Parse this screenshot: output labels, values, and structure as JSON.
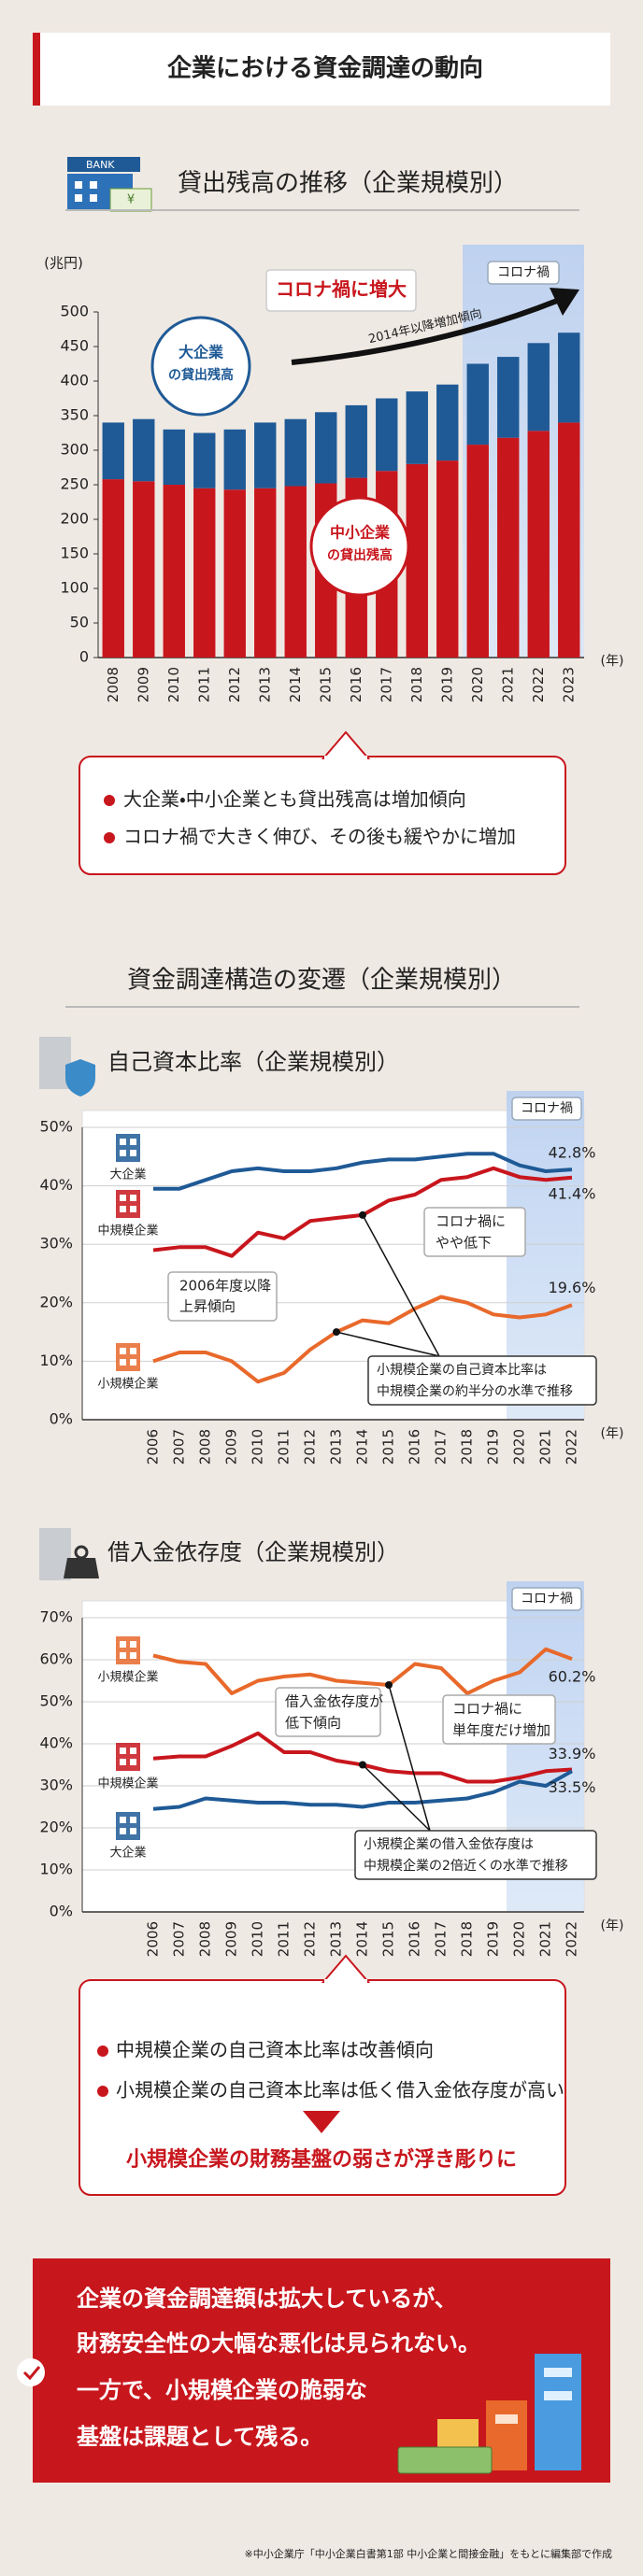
{
  "title": "企業における資金調達の動向",
  "bank_icon": {
    "sign": "BANK",
    "currency": "¥"
  },
  "summary1": [
    "大企業・中小企業とも貸出残高は増加傾向",
    "コロナ禍で大きく伸び、その後も緩やかに増加"
  ],
  "section2_heading": "資金調達構造の変遷（企業規模別）",
  "summary2": {
    "points": [
      "中規模企業の自己資本比率は改善傾向",
      "小規模企業の自己資本比率は低く借入金依存度が高い"
    ],
    "conclusion": "小規模企業の財務基盤の弱さが浮き彫りに"
  },
  "conclusion": [
    "企業の資金調達額は拡大しているが、",
    "財務安全性の大幅な悪化は見られない。",
    "一方で、小規模企業の脆弱な",
    "基盤は課題として残る。"
  ],
  "source": "※中小企業庁「中小企業白書第1部 中小企業と間接金融」をもとに編集部で作成",
  "chart_data": [
    {
      "type": "bar",
      "stacked": true,
      "title": "貸出残高の推移（企業規模別）",
      "categories": [
        "2008",
        "2009",
        "2010",
        "2011",
        "2012",
        "2013",
        "2014",
        "2015",
        "2016",
        "2017",
        "2018",
        "2019",
        "2020",
        "2021",
        "2022",
        "2023"
      ],
      "series": [
        {
          "name": "中小企業",
          "color": "#c8161d",
          "values": [
            258,
            255,
            250,
            245,
            243,
            245,
            248,
            252,
            260,
            270,
            280,
            285,
            308,
            318,
            328,
            340
          ]
        },
        {
          "name": "大企業",
          "color": "#1f5a96",
          "values": [
            82,
            90,
            80,
            80,
            87,
            95,
            97,
            103,
            105,
            105,
            105,
            110,
            117,
            117,
            127,
            130
          ]
        }
      ],
      "ylim": [
        0,
        500
      ],
      "yticks": [
        0,
        50,
        100,
        150,
        200,
        250,
        300,
        350,
        400,
        450,
        500
      ],
      "grid": false,
      "annotations": [
        "(兆円)",
        "コロナ禍に増大",
        "2014年以降増加傾向",
        "コロナ禍",
        "の貸出残高",
        "の貸出残高",
        "(年)"
      ]
    },
    {
      "type": "line",
      "title": "自己資本比率（企業規模別）",
      "categories": [
        "2006",
        "2007",
        "2008",
        "2009",
        "2010",
        "2011",
        "2012",
        "2013",
        "2014",
        "2015",
        "2016",
        "2017",
        "2018",
        "2019",
        "2020",
        "2021",
        "2022"
      ],
      "series": [
        {
          "name": "大企業",
          "color": "#1f5a96",
          "values": [
            39.5,
            39.5,
            41,
            42.5,
            43,
            42.5,
            42.5,
            43,
            44,
            44.5,
            44.5,
            45,
            45.5,
            45.5,
            43.5,
            42.5,
            42.8
          ],
          "value_labels": [
            null,
            null,
            null,
            null,
            null,
            null,
            null,
            null,
            null,
            null,
            null,
            null,
            null,
            null,
            null,
            null,
            "42.8%"
          ]
        },
        {
          "name": "中規模企業",
          "color": "#c8161d",
          "values": [
            29,
            29.5,
            29.5,
            28,
            32,
            31,
            34,
            34.5,
            35,
            37.5,
            38.5,
            41,
            41.5,
            43,
            41.5,
            41,
            41.4
          ],
          "value_labels": [
            null,
            null,
            null,
            null,
            null,
            null,
            null,
            null,
            null,
            null,
            null,
            null,
            null,
            null,
            null,
            null,
            "41.4%"
          ]
        },
        {
          "name": "小規模企業",
          "color": "#e8692b",
          "values": [
            10,
            11.5,
            11.5,
            10,
            6.5,
            8,
            12,
            15,
            17,
            16.5,
            19,
            21,
            20,
            18,
            17.5,
            18,
            19.6
          ],
          "value_labels": [
            null,
            null,
            null,
            null,
            null,
            null,
            null,
            null,
            null,
            null,
            null,
            null,
            null,
            null,
            null,
            null,
            "19.6%"
          ]
        }
      ],
      "ylim": [
        0,
        50
      ],
      "yticks": [
        {
          "value": 0,
          "label": "0%"
        },
        {
          "value": 10,
          "label": "10%"
        },
        {
          "value": 20,
          "label": "20%"
        },
        {
          "value": 30,
          "label": "30%"
        },
        {
          "value": 40,
          "label": "40%"
        },
        {
          "value": 50,
          "label": "50%"
        }
      ],
      "grid": true,
      "annotations": [
        "コロナ禍",
        [
          "2006年度以降",
          "上昇傾向"
        ],
        [
          "コロナ禍に",
          "やや低下"
        ],
        [
          "小規模企業の自己資本比率は",
          "中規模企業の約半分の水準で推移"
        ],
        "(年)"
      ]
    },
    {
      "type": "line",
      "title": "借入金依存度（企業規模別）",
      "categories": [
        "2006",
        "2007",
        "2008",
        "2009",
        "2010",
        "2011",
        "2012",
        "2013",
        "2014",
        "2015",
        "2016",
        "2017",
        "2018",
        "2019",
        "2020",
        "2021",
        "2022"
      ],
      "series": [
        {
          "name": "小規模企業",
          "color": "#e8692b",
          "values": [
            61,
            59.5,
            59,
            52,
            55,
            56,
            56.5,
            55,
            54.5,
            54,
            59,
            58,
            52,
            55,
            57,
            62.5,
            60.2
          ],
          "value_labels": [
            null,
            null,
            null,
            null,
            null,
            null,
            null,
            null,
            null,
            null,
            null,
            null,
            null,
            null,
            null,
            null,
            "60.2%"
          ]
        },
        {
          "name": "中規模企業",
          "color": "#c8161d",
          "values": [
            36.5,
            37,
            37,
            39.5,
            42.5,
            38,
            38,
            36,
            35,
            33.5,
            33,
            33,
            31,
            31,
            32,
            33.5,
            33.9
          ],
          "value_labels": [
            null,
            null,
            null,
            null,
            null,
            null,
            null,
            null,
            null,
            null,
            null,
            null,
            null,
            null,
            null,
            null,
            "33.9%"
          ]
        },
        {
          "name": "大企業",
          "color": "#1f5a96",
          "values": [
            24.5,
            25,
            27,
            26.5,
            26,
            26,
            25.5,
            25.5,
            25,
            26,
            26,
            26.5,
            27,
            28.5,
            31,
            30,
            33.5
          ],
          "value_labels": [
            null,
            null,
            null,
            null,
            null,
            null,
            null,
            null,
            null,
            null,
            null,
            null,
            null,
            null,
            null,
            null,
            "33.5%"
          ]
        }
      ],
      "ylim": [
        0,
        70
      ],
      "yticks": [
        {
          "value": 0,
          "label": "0%"
        },
        {
          "value": 10,
          "label": "10%"
        },
        {
          "value": 20,
          "label": "20%"
        },
        {
          "value": 30,
          "label": "30%"
        },
        {
          "value": 40,
          "label": "40%"
        },
        {
          "value": 50,
          "label": "50%"
        },
        {
          "value": 60,
          "label": "60%"
        },
        {
          "value": 70,
          "label": "70%"
        }
      ],
      "grid": true,
      "annotations": [
        "コロナ禍",
        [
          "借入金依存度が",
          "低下傾向"
        ],
        [
          "コロナ禍に",
          "単年度だけ増加"
        ],
        [
          "小規模企業の借入金依存度は",
          "中規模企業の2倍近くの水準で推移"
        ],
        "(年)"
      ]
    }
  ]
}
